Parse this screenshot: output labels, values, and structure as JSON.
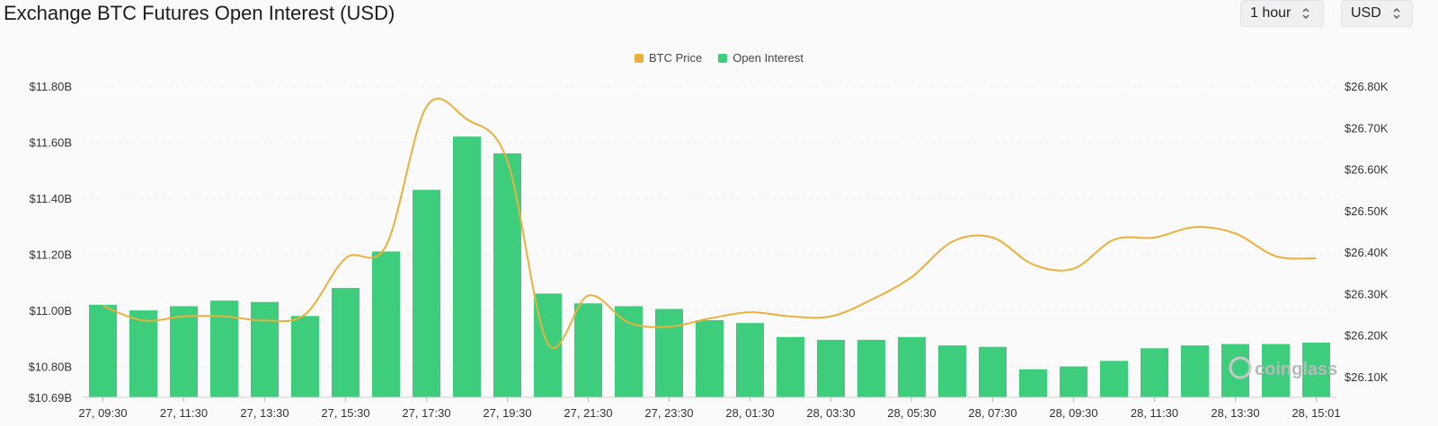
{
  "header": {
    "title": "Exchange BTC Futures Open Interest (USD)"
  },
  "controls": {
    "interval": {
      "value": "1 hour"
    },
    "currency": {
      "value": "USD"
    }
  },
  "watermark": {
    "text": "coinglass"
  },
  "colors": {
    "bar": "#3ecd7c",
    "line": "#e9b13c",
    "grid": "#ececec"
  },
  "chart_data": {
    "type": "bar",
    "grid": true,
    "legend_position": "top-center",
    "legend": [
      {
        "name": "BTC Price",
        "color": "#e9b13c"
      },
      {
        "name": "Open Interest",
        "color": "#3ecd7c"
      }
    ],
    "categories": [
      "27, 09:30",
      "27, 10:30",
      "27, 11:30",
      "27, 12:30",
      "27, 13:30",
      "27, 14:30",
      "27, 15:30",
      "27, 16:30",
      "27, 17:30",
      "27, 18:30",
      "27, 19:30",
      "27, 20:30",
      "27, 21:30",
      "27, 22:30",
      "27, 23:30",
      "28, 00:30",
      "28, 01:30",
      "28, 02:30",
      "28, 03:30",
      "28, 04:30",
      "28, 05:30",
      "28, 06:30",
      "28, 07:30",
      "28, 08:30",
      "28, 09:30",
      "28, 10:30",
      "28, 11:30",
      "28, 12:30",
      "28, 13:30",
      "28, 14:30",
      "28, 15:01"
    ],
    "x_tick_labels": [
      "27, 09:30",
      "27, 11:30",
      "27, 13:30",
      "27, 15:30",
      "27, 17:30",
      "27, 19:30",
      "27, 21:30",
      "27, 23:30",
      "28, 01:30",
      "28, 03:30",
      "28, 05:30",
      "28, 07:30",
      "28, 09:30",
      "28, 11:30",
      "28, 13:30",
      "28, 15:01"
    ],
    "left_axis": {
      "ylim": [
        10.69,
        11.8
      ],
      "ticks": [
        11.8,
        11.6,
        11.4,
        11.2,
        11.0,
        10.8,
        10.69
      ],
      "tick_labels": [
        "$11.80B",
        "$11.60B",
        "$11.40B",
        "$11.20B",
        "$11.00B",
        "$10.80B",
        "$10.69B"
      ]
    },
    "right_axis": {
      "ylim": [
        26.05,
        26.8
      ],
      "ticks": [
        26.8,
        26.7,
        26.6,
        26.5,
        26.4,
        26.3,
        26.2,
        26.1
      ],
      "tick_labels": [
        "$26.80K",
        "$26.70K",
        "$26.60K",
        "$26.50K",
        "$26.40K",
        "$26.30K",
        "$26.20K",
        "$26.10K"
      ]
    },
    "series": [
      {
        "name": "Open Interest",
        "type": "bar",
        "axis": "left",
        "values": [
          11.02,
          11.0,
          11.015,
          11.035,
          11.03,
          10.98,
          11.08,
          11.21,
          11.43,
          11.62,
          11.56,
          11.06,
          11.025,
          11.015,
          11.005,
          10.965,
          10.955,
          10.905,
          10.895,
          10.895,
          10.905,
          10.875,
          10.87,
          10.79,
          10.8,
          10.82,
          10.865,
          10.875,
          10.88,
          10.88,
          10.885
        ]
      },
      {
        "name": "BTC Price",
        "type": "line",
        "axis": "right",
        "values": [
          26.27,
          26.235,
          26.245,
          26.245,
          26.235,
          26.25,
          26.385,
          26.415,
          26.75,
          26.72,
          26.62,
          26.18,
          26.295,
          26.23,
          26.22,
          26.24,
          26.255,
          26.245,
          26.245,
          26.285,
          26.34,
          26.425,
          26.435,
          26.37,
          26.36,
          26.43,
          26.435,
          26.46,
          26.445,
          26.39,
          26.385
        ]
      }
    ]
  }
}
